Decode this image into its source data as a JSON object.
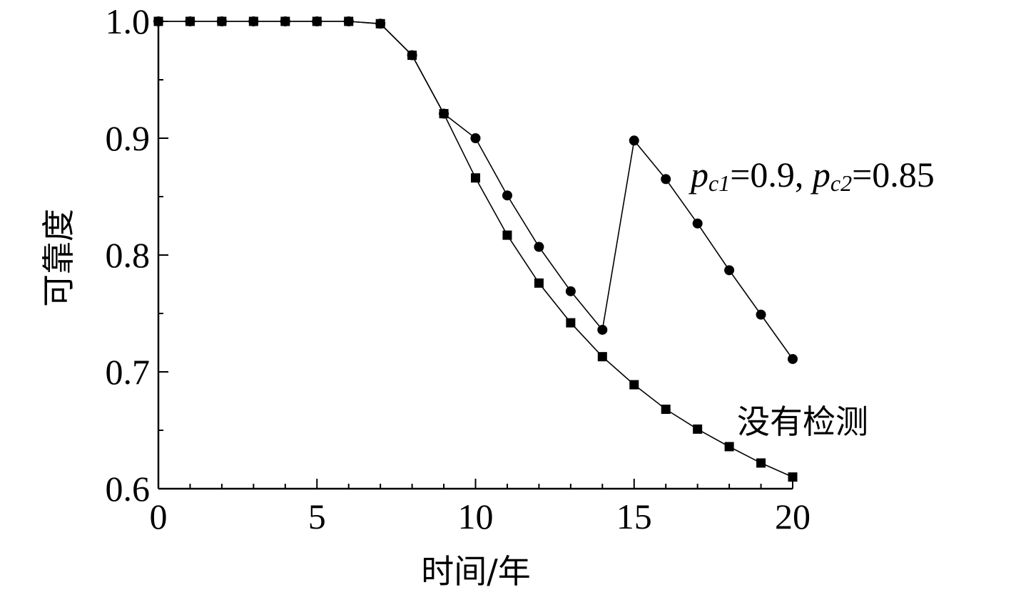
{
  "chart_data": {
    "type": "line",
    "title": "",
    "xlabel": "时间/年",
    "ylabel": "可靠度",
    "xlim": [
      0,
      20
    ],
    "ylim": [
      0.6,
      1.0
    ],
    "xticks": [
      0,
      5,
      10,
      15,
      20
    ],
    "xtick_labels": [
      "0",
      "5",
      "10",
      "15",
      "20"
    ],
    "yticks": [
      0.6,
      0.7,
      0.8,
      0.9,
      1.0
    ],
    "ytick_labels": [
      "0.6",
      "0.7",
      "0.8",
      "0.9",
      "1.0"
    ],
    "grid": false,
    "legend": "none",
    "series": [
      {
        "name": "没有检测",
        "marker": "square",
        "color": "#000000",
        "x": [
          0,
          1,
          2,
          3,
          4,
          5,
          6,
          7,
          8,
          9,
          10,
          11,
          12,
          13,
          14,
          15,
          16,
          17,
          18,
          19,
          20
        ],
        "y": [
          1.0,
          1.0,
          1.0,
          1.0,
          1.0,
          1.0,
          1.0,
          0.998,
          0.971,
          0.921,
          0.866,
          0.817,
          0.776,
          0.742,
          0.713,
          0.689,
          0.668,
          0.651,
          0.636,
          0.622,
          0.61
        ]
      },
      {
        "name": "pc1=0.9, pc2=0.85",
        "marker": "circle",
        "color": "#000000",
        "x": [
          0,
          1,
          2,
          3,
          4,
          5,
          6,
          7,
          8,
          9,
          10,
          11,
          12,
          13,
          14,
          15,
          16,
          17,
          18,
          19,
          20
        ],
        "y": [
          1.0,
          1.0,
          1.0,
          1.0,
          1.0,
          1.0,
          1.0,
          0.998,
          0.971,
          0.921,
          0.9,
          0.851,
          0.807,
          0.769,
          0.736,
          0.898,
          0.865,
          0.827,
          0.787,
          0.749,
          0.711
        ]
      }
    ],
    "annotations": {
      "no_detection_label": "没有检测",
      "pc_label": {
        "p1": "p",
        "s1": "c1",
        "v1": "=0.9, ",
        "p2": "p",
        "s2": "c2",
        "v2": "=0.85"
      }
    }
  }
}
